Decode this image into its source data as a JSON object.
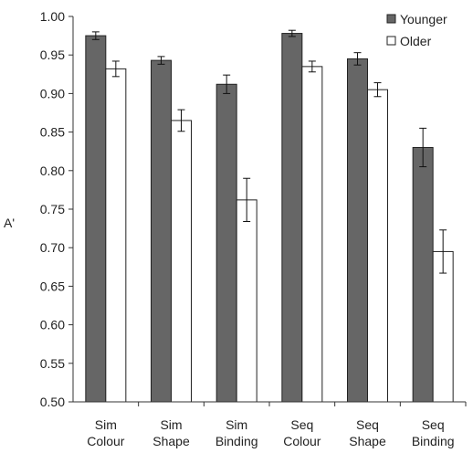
{
  "chart_data": {
    "type": "bar",
    "title": "",
    "xlabel": "",
    "ylabel": "A'",
    "ylim": [
      0.5,
      1.0
    ],
    "yticks": [
      "0.50",
      "0.55",
      "0.60",
      "0.65",
      "0.70",
      "0.75",
      "0.80",
      "0.85",
      "0.90",
      "0.95",
      "1.00"
    ],
    "categories": [
      [
        "Sim",
        "Colour"
      ],
      [
        "Sim",
        "Shape"
      ],
      [
        "Sim",
        "Binding"
      ],
      [
        "Seq",
        "Colour"
      ],
      [
        "Seq",
        "Shape"
      ],
      [
        "Seq",
        "Binding"
      ]
    ],
    "series": [
      {
        "name": "Younger",
        "color": "#666666",
        "values": [
          0.975,
          0.943,
          0.912,
          0.978,
          0.945,
          0.83
        ],
        "errors": [
          0.005,
          0.005,
          0.012,
          0.004,
          0.008,
          0.025
        ]
      },
      {
        "name": "Older",
        "color": "#ffffff",
        "values": [
          0.932,
          0.865,
          0.762,
          0.935,
          0.905,
          0.695
        ],
        "errors": [
          0.01,
          0.014,
          0.028,
          0.007,
          0.009,
          0.028
        ]
      }
    ],
    "legend": "top-right",
    "grid": false
  }
}
